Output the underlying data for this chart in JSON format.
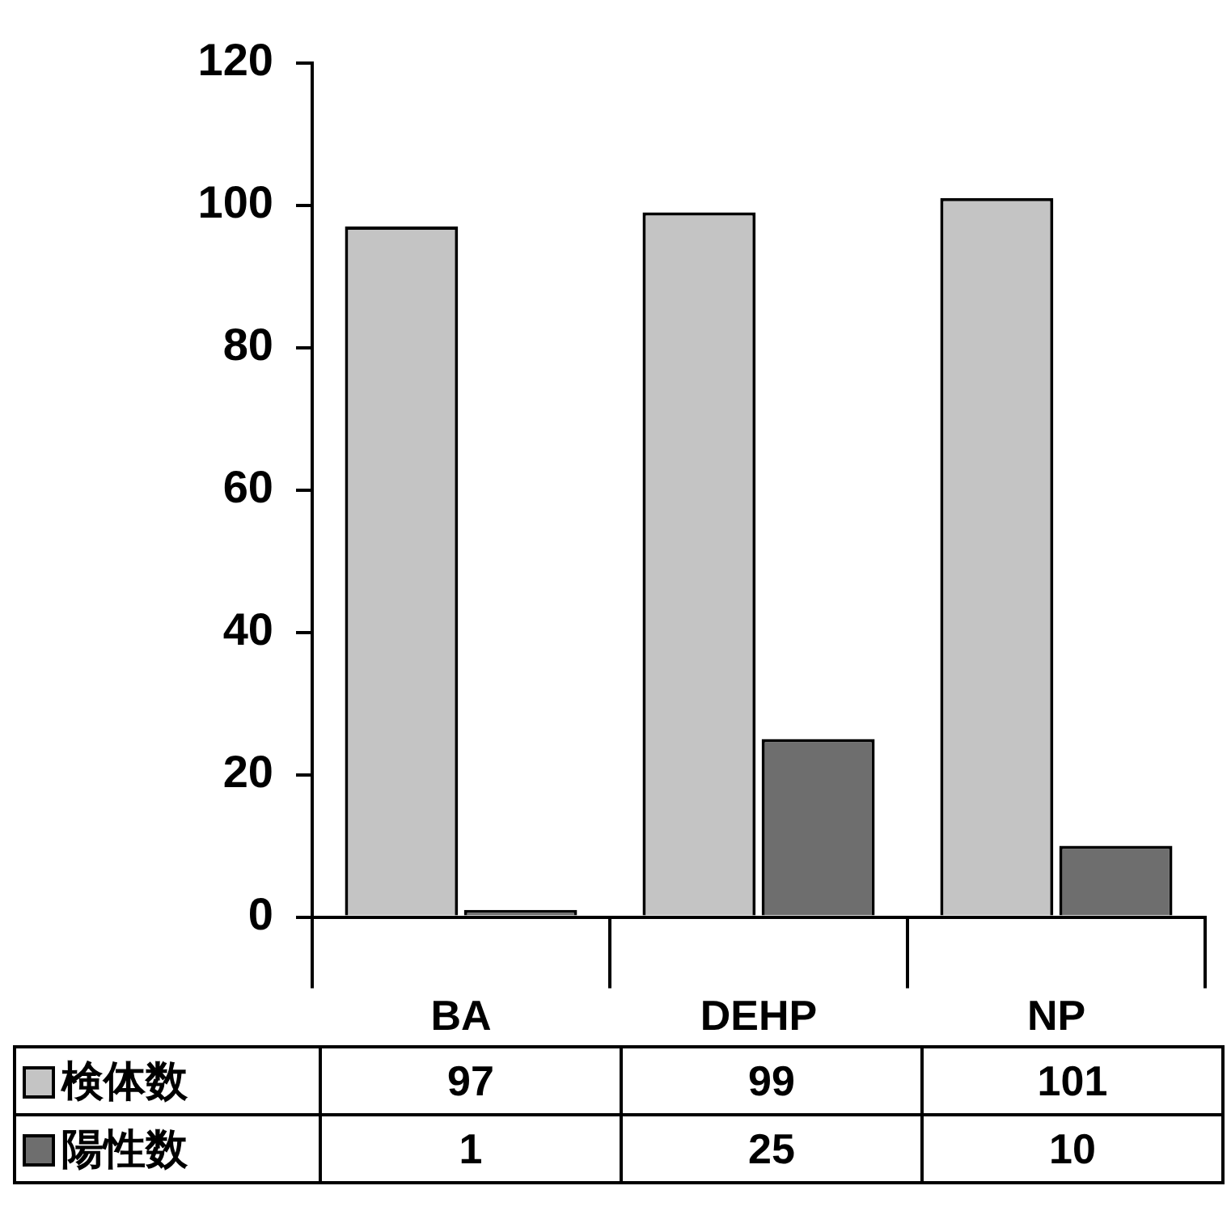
{
  "chart_data": {
    "type": "bar",
    "categories": [
      "BA",
      "DEHP",
      "NP"
    ],
    "series": [
      {
        "name": "検体数",
        "color": "#c4c4c4",
        "values": [
          97,
          99,
          101
        ]
      },
      {
        "name": "陽性数",
        "color": "#6e6e6e",
        "values": [
          1,
          25,
          10
        ]
      }
    ],
    "ylim": [
      0,
      120
    ],
    "yticks": [
      0,
      20,
      40,
      60,
      80,
      100,
      120
    ],
    "grid": false,
    "legend": "bottom",
    "data_labels": true
  }
}
